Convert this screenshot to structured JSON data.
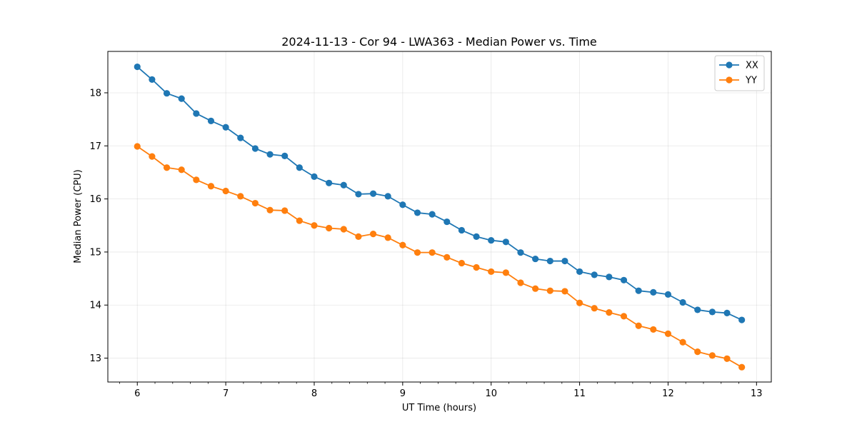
{
  "chart_data": {
    "type": "line",
    "title": "2024-11-13 - Cor 94 - LWA363 - Median Power vs. Time",
    "xlabel": "UT Time (hours)",
    "ylabel": "Median Power (CPU)",
    "xlim": [
      5.667,
      13.167
    ],
    "ylim": [
      12.55,
      18.78
    ],
    "xticks": [
      6,
      7,
      8,
      9,
      10,
      11,
      12,
      13
    ],
    "yticks": [
      13,
      14,
      15,
      16,
      17,
      18
    ],
    "xminor_step": 0.2,
    "grid": true,
    "legend_position": "top-right",
    "x": [
      6.0,
      6.1667,
      6.3333,
      6.5,
      6.6667,
      6.8333,
      7.0,
      7.1667,
      7.3333,
      7.5,
      7.6667,
      7.8333,
      8.0,
      8.1667,
      8.3333,
      8.5,
      8.6667,
      8.8333,
      9.0,
      9.1667,
      9.3333,
      9.5,
      9.6667,
      9.8333,
      10.0,
      10.1667,
      10.3333,
      10.5,
      10.6667,
      10.8333,
      11.0,
      11.1667,
      11.3333,
      11.5,
      11.6667,
      11.8333,
      12.0,
      12.1667,
      12.3333,
      12.5,
      12.6667,
      12.8333
    ],
    "series": [
      {
        "name": "XX",
        "color": "#1f77b4",
        "values": [
          18.49,
          18.25,
          17.99,
          17.89,
          17.61,
          17.47,
          17.35,
          17.15,
          16.95,
          16.84,
          16.81,
          16.59,
          16.42,
          16.3,
          16.26,
          16.09,
          16.1,
          16.05,
          15.89,
          15.74,
          15.71,
          15.57,
          15.41,
          15.29,
          15.22,
          15.19,
          14.99,
          14.87,
          14.83,
          14.83,
          14.63,
          14.57,
          14.53,
          14.47,
          14.27,
          14.24,
          14.2,
          14.05,
          13.91,
          13.87,
          13.85,
          13.72
        ]
      },
      {
        "name": "YY",
        "color": "#ff7f0e",
        "values": [
          16.99,
          16.8,
          16.59,
          16.55,
          16.36,
          16.24,
          16.15,
          16.05,
          15.92,
          15.79,
          15.78,
          15.59,
          15.5,
          15.45,
          15.43,
          15.29,
          15.34,
          15.27,
          15.13,
          14.99,
          14.99,
          14.9,
          14.79,
          14.71,
          14.63,
          14.61,
          14.42,
          14.31,
          14.27,
          14.26,
          14.04,
          13.94,
          13.86,
          13.79,
          13.61,
          13.54,
          13.46,
          13.3,
          13.12,
          13.05,
          12.99,
          12.83
        ]
      }
    ]
  }
}
